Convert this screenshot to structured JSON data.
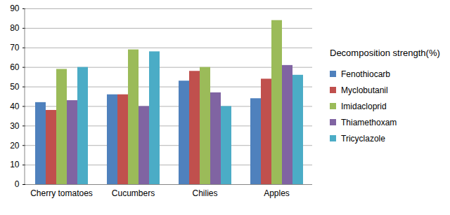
{
  "chart_data": {
    "type": "bar",
    "legend_title": "Decomposition strength(%)",
    "categories": [
      "Cherry tomatoes",
      "Cucumbers",
      "Chilies",
      "Apples"
    ],
    "series": [
      {
        "name": "Fenothiocarb",
        "color": "#4f81bd",
        "values": [
          42,
          46,
          53,
          44
        ]
      },
      {
        "name": "Myclobutanil",
        "color": "#c0504d",
        "values": [
          38,
          46,
          58,
          54
        ]
      },
      {
        "name": "Imidacloprid",
        "color": "#9bbb59",
        "values": [
          59,
          69,
          60,
          84
        ]
      },
      {
        "name": "Thiamethoxam",
        "color": "#8064a2",
        "values": [
          43,
          40,
          47,
          61
        ]
      },
      {
        "name": "Tricyclazole",
        "color": "#4bacc6",
        "values": [
          60,
          68,
          40,
          56
        ]
      }
    ],
    "ylim": [
      0,
      90
    ],
    "yticks": [
      0,
      10,
      20,
      30,
      40,
      50,
      60,
      70,
      80,
      90
    ],
    "grid": true,
    "legend": "right"
  }
}
